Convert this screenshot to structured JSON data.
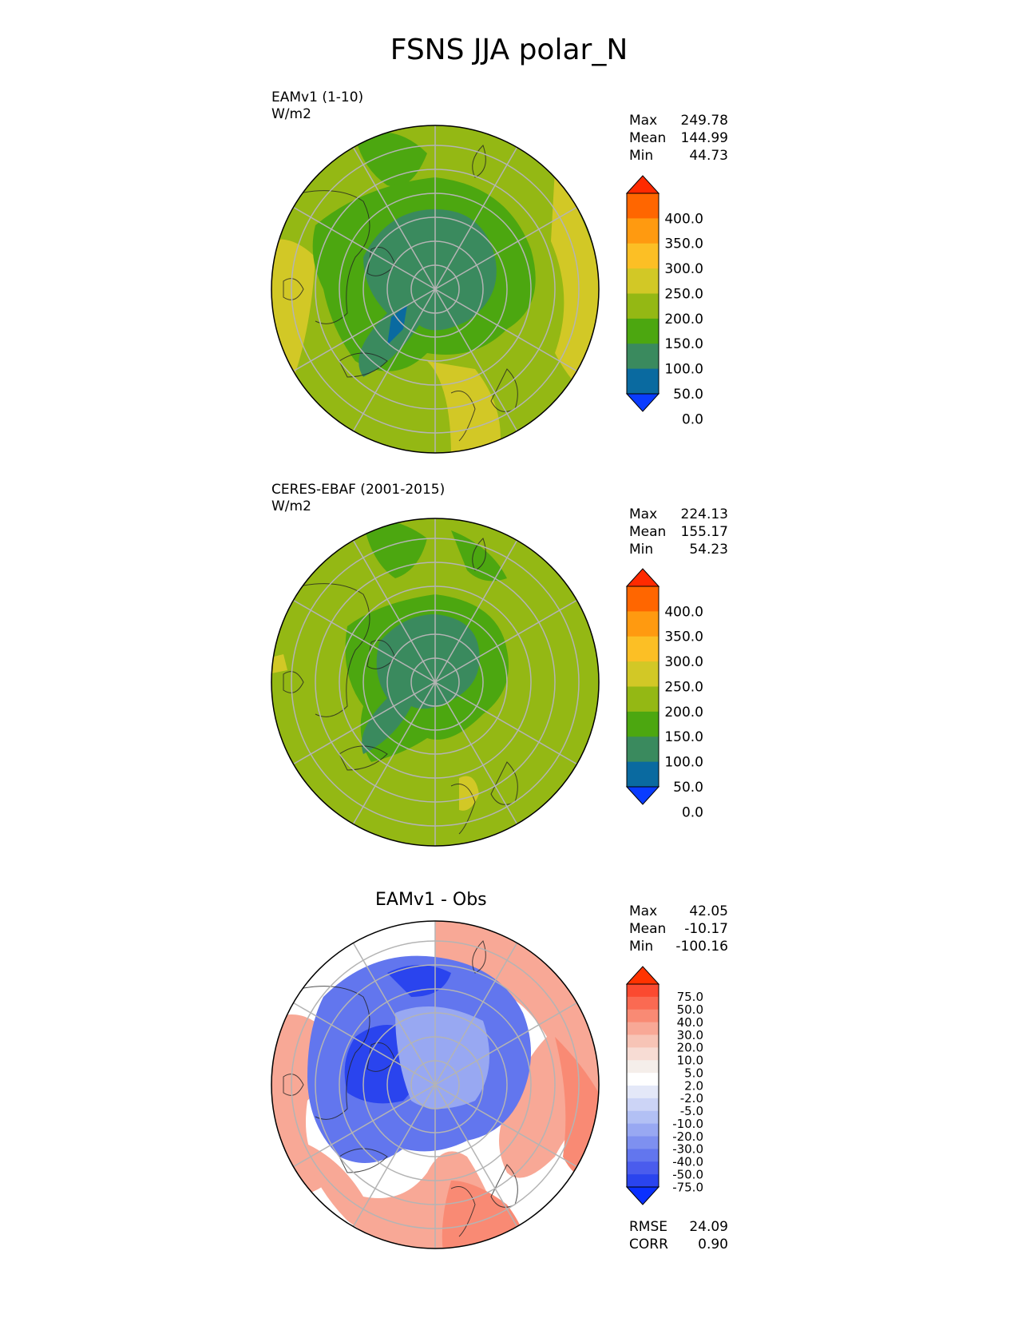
{
  "title": "FSNS JJA polar_N",
  "panels": [
    {
      "label": "EAMv1 (1-10)",
      "units": "W/m2",
      "stats": [
        {
          "key": "Max",
          "value": "249.78"
        },
        {
          "key": "Mean",
          "value": "144.99"
        },
        {
          "key": "Min",
          "value": "44.73"
        }
      ],
      "colorbar": {
        "ticks": [
          "400.0",
          "350.0",
          "300.0",
          "250.0",
          "200.0",
          "150.0",
          "100.0",
          "50.0",
          "0.0"
        ],
        "colors": [
          "#ff2a00",
          "#ff6600",
          "#ff9a10",
          "#fcbf25",
          "#d2c826",
          "#94b814",
          "#4ca710",
          "#3a8a5e",
          "#0a6aa0",
          "#0a3cff"
        ]
      }
    },
    {
      "label": "CERES-EBAF (2001-2015)",
      "units": "W/m2",
      "stats": [
        {
          "key": "Max",
          "value": "224.13"
        },
        {
          "key": "Mean",
          "value": "155.17"
        },
        {
          "key": "Min",
          "value": "54.23"
        }
      ],
      "colorbar": {
        "ticks": [
          "400.0",
          "350.0",
          "300.0",
          "250.0",
          "200.0",
          "150.0",
          "100.0",
          "50.0",
          "0.0"
        ],
        "colors": [
          "#ff2a00",
          "#ff6600",
          "#ff9a10",
          "#fcbf25",
          "#d2c826",
          "#94b814",
          "#4ca710",
          "#3a8a5e",
          "#0a6aa0",
          "#0a3cff"
        ]
      }
    },
    {
      "label": "EAMv1 - Obs",
      "stats": [
        {
          "key": "Max",
          "value": "42.05"
        },
        {
          "key": "Mean",
          "value": "-10.17"
        },
        {
          "key": "Min",
          "value": "-100.16"
        }
      ],
      "colorbar": {
        "ticks": [
          "75.0",
          "50.0",
          "40.0",
          "30.0",
          "20.0",
          "10.0",
          "5.0",
          "2.0",
          "-2.0",
          "-5.0",
          "-10.0",
          "-20.0",
          "-30.0",
          "-40.0",
          "-50.0",
          "-75.0"
        ],
        "colors": [
          "#ff3300",
          "#fb4a30",
          "#fa6a52",
          "#f98a74",
          "#f8a896",
          "#f7c4b6",
          "#f7dcd4",
          "#f5eeea",
          "#ffffff",
          "#e4e8f8",
          "#ccd4f6",
          "#b2c0f4",
          "#98a8f2",
          "#7e90f0",
          "#6276ee",
          "#4a5ced",
          "#2a44ee",
          "#0a30ff"
        ]
      },
      "metrics": [
        {
          "key": "RMSE",
          "value": "24.09"
        },
        {
          "key": "CORR",
          "value": "0.90"
        }
      ]
    }
  ],
  "map_colors": {
    "ocean": "#94b814",
    "polar": "#3a8a5e",
    "ring": "#4ca710",
    "warm": "#d2c826",
    "diff_base": "#ffffff",
    "diff_neg": "#6276ee",
    "diff_strong_neg": "#2a44ee",
    "diff_pos": "#f98a74",
    "grid": "#b4b4b4"
  }
}
